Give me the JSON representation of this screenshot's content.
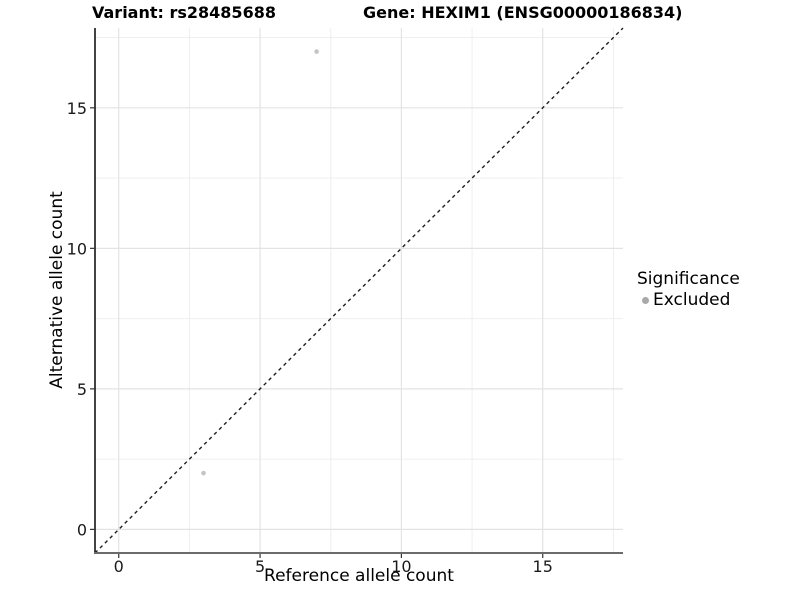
{
  "title": {
    "variant": "Variant: rs28485688",
    "gene": "Gene: HEXIM1 (ENSG00000186834)"
  },
  "axes": {
    "x_label": "Reference allele count",
    "y_label": "Alternative allele count"
  },
  "legend": {
    "title": "Significance",
    "items": [
      {
        "label": "Excluded",
        "color": "#a9a9a9"
      }
    ]
  },
  "chart_data": {
    "type": "scatter",
    "title": "Variant: rs28485688 — Gene: HEXIM1 (ENSG00000186834)",
    "xlabel": "Reference allele count",
    "ylabel": "Alternative allele count",
    "xlim": [
      -0.84,
      17.84
    ],
    "ylim": [
      -0.84,
      17.84
    ],
    "x_ticks": [
      0,
      5,
      10,
      15
    ],
    "y_ticks": [
      0,
      5,
      10,
      15
    ],
    "x_minor_ticks": [
      2.5,
      7.5,
      12.5,
      17.5
    ],
    "y_minor_ticks": [
      2.5,
      7.5,
      12.5,
      17.5
    ],
    "grid": "major+minor",
    "legend_position": "right",
    "series": [
      {
        "name": "Excluded",
        "color": "#c4c4c4",
        "points": [
          [
            3,
            2
          ],
          [
            7,
            17
          ]
        ]
      }
    ],
    "reference_line": {
      "kind": "identity",
      "slope": 1,
      "intercept": 0,
      "style": "dashed",
      "color": "#1f1f1f"
    }
  },
  "colors": {
    "background": "#ffffff",
    "grid_major": "#e3e3e3",
    "grid_minor": "#efefef",
    "axis_line_y": "#141414",
    "axis_line_x": "#6b6b6b",
    "tick_mark": "#333333",
    "tick_text": "#1a1a1a"
  }
}
